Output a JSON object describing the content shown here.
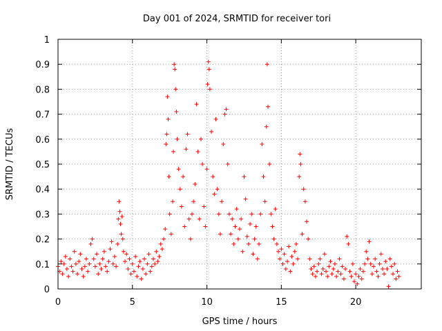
{
  "chart_data": {
    "type": "scatter",
    "title": "Day 001 of 2024, SRMTID for receiver tori",
    "xlabel": "GPS time / hours",
    "ylabel": "SRMTID / TECUs",
    "xlim": [
      0,
      24.4
    ],
    "ylim": [
      0,
      1
    ],
    "xticks": [
      0,
      5,
      10,
      15,
      20
    ],
    "xtick_labels": [
      "0",
      "5",
      "10",
      "15",
      "20"
    ],
    "yticks": [
      0,
      0.1,
      0.2,
      0.3,
      0.4,
      0.5,
      0.6,
      0.7,
      0.8,
      0.9,
      1
    ],
    "ytick_labels": [
      "0",
      "0.1",
      "0.2",
      "0.3",
      "0.4",
      "0.5",
      "0.6",
      "0.7",
      "0.8",
      "0.9",
      "1"
    ],
    "grid": true,
    "marker": "+",
    "color": "#ff0000",
    "series": [
      {
        "name": "SRMTID",
        "points": [
          [
            0.0,
            0.09
          ],
          [
            0.1,
            0.07
          ],
          [
            0.2,
            0.11
          ],
          [
            0.3,
            0.06
          ],
          [
            0.4,
            0.1
          ],
          [
            0.5,
            0.13
          ],
          [
            0.6,
            0.08
          ],
          [
            0.7,
            0.05
          ],
          [
            0.8,
            0.12
          ],
          [
            0.9,
            0.09
          ],
          [
            1.0,
            0.07
          ],
          [
            1.1,
            0.15
          ],
          [
            1.2,
            0.1
          ],
          [
            1.3,
            0.06
          ],
          [
            1.4,
            0.11
          ],
          [
            1.5,
            0.14
          ],
          [
            1.6,
            0.08
          ],
          [
            1.7,
            0.05
          ],
          [
            1.8,
            0.09
          ],
          [
            1.9,
            0.12
          ],
          [
            2.0,
            0.07
          ],
          [
            2.1,
            0.1
          ],
          [
            2.2,
            0.18
          ],
          [
            2.3,
            0.2
          ],
          [
            2.4,
            0.12
          ],
          [
            2.5,
            0.09
          ],
          [
            2.6,
            0.14
          ],
          [
            2.7,
            0.06
          ],
          [
            2.8,
            0.1
          ],
          [
            2.9,
            0.08
          ],
          [
            3.0,
            0.12
          ],
          [
            3.1,
            0.15
          ],
          [
            3.2,
            0.09
          ],
          [
            3.3,
            0.07
          ],
          [
            3.4,
            0.11
          ],
          [
            3.5,
            0.16
          ],
          [
            3.6,
            0.19
          ],
          [
            3.7,
            0.1
          ],
          [
            3.8,
            0.13
          ],
          [
            3.9,
            0.09
          ],
          [
            4.0,
            0.18
          ],
          [
            4.05,
            0.28
          ],
          [
            4.1,
            0.35
          ],
          [
            4.15,
            0.31
          ],
          [
            4.2,
            0.26
          ],
          [
            4.25,
            0.22
          ],
          [
            4.3,
            0.29
          ],
          [
            4.35,
            0.2
          ],
          [
            4.4,
            0.15
          ],
          [
            4.5,
            0.11
          ],
          [
            4.6,
            0.14
          ],
          [
            4.7,
            0.08
          ],
          [
            4.8,
            0.12
          ],
          [
            4.9,
            0.06
          ],
          [
            5.0,
            0.1
          ],
          [
            5.1,
            0.07
          ],
          [
            5.2,
            0.13
          ],
          [
            5.3,
            0.05
          ],
          [
            5.4,
            0.09
          ],
          [
            5.5,
            0.11
          ],
          [
            5.6,
            0.04
          ],
          [
            5.7,
            0.08
          ],
          [
            5.8,
            0.12
          ],
          [
            5.9,
            0.06
          ],
          [
            6.0,
            0.1
          ],
          [
            6.1,
            0.14
          ],
          [
            6.2,
            0.07
          ],
          [
            6.3,
            0.09
          ],
          [
            6.4,
            0.12
          ],
          [
            6.5,
            0.1
          ],
          [
            6.6,
            0.15
          ],
          [
            6.7,
            0.11
          ],
          [
            6.8,
            0.13
          ],
          [
            6.9,
            0.18
          ],
          [
            7.0,
            0.16
          ],
          [
            7.1,
            0.2
          ],
          [
            7.2,
            0.24
          ],
          [
            7.25,
            0.58
          ],
          [
            7.3,
            0.62
          ],
          [
            7.35,
            0.77
          ],
          [
            7.4,
            0.68
          ],
          [
            7.45,
            0.45
          ],
          [
            7.5,
            0.3
          ],
          [
            7.6,
            0.22
          ],
          [
            7.7,
            0.35
          ],
          [
            7.75,
            0.55
          ],
          [
            7.8,
            0.9
          ],
          [
            7.85,
            0.88
          ],
          [
            7.9,
            0.8
          ],
          [
            7.95,
            0.71
          ],
          [
            8.0,
            0.6
          ],
          [
            8.1,
            0.48
          ],
          [
            8.2,
            0.4
          ],
          [
            8.3,
            0.33
          ],
          [
            8.4,
            0.45
          ],
          [
            8.5,
            0.25
          ],
          [
            8.6,
            0.56
          ],
          [
            8.7,
            0.62
          ],
          [
            8.8,
            0.28
          ],
          [
            8.9,
            0.2
          ],
          [
            9.0,
            0.3
          ],
          [
            9.1,
            0.35
          ],
          [
            9.2,
            0.42
          ],
          [
            9.3,
            0.74
          ],
          [
            9.4,
            0.55
          ],
          [
            9.5,
            0.28
          ],
          [
            9.6,
            0.6
          ],
          [
            9.7,
            0.5
          ],
          [
            9.8,
            0.33
          ],
          [
            9.9,
            0.25
          ],
          [
            10.0,
            0.48
          ],
          [
            10.05,
            0.82
          ],
          [
            10.1,
            0.91
          ],
          [
            10.15,
            0.88
          ],
          [
            10.2,
            0.8
          ],
          [
            10.3,
            0.63
          ],
          [
            10.4,
            0.45
          ],
          [
            10.5,
            0.38
          ],
          [
            10.6,
            0.68
          ],
          [
            10.7,
            0.4
          ],
          [
            10.8,
            0.3
          ],
          [
            10.9,
            0.22
          ],
          [
            11.0,
            0.35
          ],
          [
            11.1,
            0.58
          ],
          [
            11.2,
            0.7
          ],
          [
            11.3,
            0.72
          ],
          [
            11.4,
            0.5
          ],
          [
            11.5,
            0.3
          ],
          [
            11.6,
            0.22
          ],
          [
            11.7,
            0.28
          ],
          [
            11.8,
            0.18
          ],
          [
            11.9,
            0.25
          ],
          [
            12.0,
            0.32
          ],
          [
            12.1,
            0.2
          ],
          [
            12.2,
            0.24
          ],
          [
            12.3,
            0.28
          ],
          [
            12.4,
            0.15
          ],
          [
            12.5,
            0.45
          ],
          [
            12.6,
            0.36
          ],
          [
            12.7,
            0.21
          ],
          [
            12.8,
            0.18
          ],
          [
            12.9,
            0.26
          ],
          [
            13.0,
            0.3
          ],
          [
            13.1,
            0.14
          ],
          [
            13.2,
            0.2
          ],
          [
            13.3,
            0.25
          ],
          [
            13.4,
            0.12
          ],
          [
            13.5,
            0.18
          ],
          [
            13.6,
            0.3
          ],
          [
            13.7,
            0.58
          ],
          [
            13.8,
            0.45
          ],
          [
            13.9,
            0.35
          ],
          [
            14.0,
            0.65
          ],
          [
            14.05,
            0.9
          ],
          [
            14.1,
            0.73
          ],
          [
            14.2,
            0.5
          ],
          [
            14.3,
            0.3
          ],
          [
            14.4,
            0.25
          ],
          [
            14.5,
            0.2
          ],
          [
            14.6,
            0.32
          ],
          [
            14.7,
            0.18
          ],
          [
            14.8,
            0.15
          ],
          [
            14.9,
            0.12
          ],
          [
            15.0,
            0.16
          ],
          [
            15.1,
            0.1
          ],
          [
            15.2,
            0.14
          ],
          [
            15.3,
            0.08
          ],
          [
            15.4,
            0.11
          ],
          [
            15.5,
            0.17
          ],
          [
            15.6,
            0.07
          ],
          [
            15.7,
            0.13
          ],
          [
            15.8,
            0.1
          ],
          [
            15.9,
            0.15
          ],
          [
            16.0,
            0.18
          ],
          [
            16.1,
            0.12
          ],
          [
            16.2,
            0.45
          ],
          [
            16.25,
            0.54
          ],
          [
            16.3,
            0.5
          ],
          [
            16.4,
            0.22
          ],
          [
            16.5,
            0.4
          ],
          [
            16.6,
            0.35
          ],
          [
            16.7,
            0.27
          ],
          [
            16.8,
            0.2
          ],
          [
            16.9,
            0.12
          ],
          [
            17.0,
            0.08
          ],
          [
            17.1,
            0.06
          ],
          [
            17.2,
            0.09
          ],
          [
            17.3,
            0.05
          ],
          [
            17.4,
            0.07
          ],
          [
            17.5,
            0.1
          ],
          [
            17.6,
            0.12
          ],
          [
            17.7,
            0.06
          ],
          [
            17.8,
            0.08
          ],
          [
            17.9,
            0.14
          ],
          [
            18.0,
            0.07
          ],
          [
            18.1,
            0.05
          ],
          [
            18.2,
            0.09
          ],
          [
            18.3,
            0.11
          ],
          [
            18.4,
            0.06
          ],
          [
            18.5,
            0.08
          ],
          [
            18.6,
            0.1
          ],
          [
            18.7,
            0.05
          ],
          [
            18.8,
            0.07
          ],
          [
            18.9,
            0.12
          ],
          [
            19.0,
            0.06
          ],
          [
            19.1,
            0.09
          ],
          [
            19.2,
            0.04
          ],
          [
            19.3,
            0.08
          ],
          [
            19.4,
            0.21
          ],
          [
            19.5,
            0.18
          ],
          [
            19.6,
            0.07
          ],
          [
            19.7,
            0.05
          ],
          [
            19.8,
            0.1
          ],
          [
            19.9,
            0.03
          ],
          [
            20.0,
            0.06
          ],
          [
            20.1,
            0.02
          ],
          [
            20.2,
            0.05
          ],
          [
            20.3,
            0.08
          ],
          [
            20.4,
            0.04
          ],
          [
            20.5,
            0.07
          ],
          [
            20.6,
            0.1
          ],
          [
            20.7,
            0.15
          ],
          [
            20.8,
            0.12
          ],
          [
            20.9,
            0.19
          ],
          [
            21.0,
            0.1
          ],
          [
            21.1,
            0.06
          ],
          [
            21.2,
            0.09
          ],
          [
            21.3,
            0.12
          ],
          [
            21.4,
            0.07
          ],
          [
            21.5,
            0.05
          ],
          [
            21.6,
            0.1
          ],
          [
            21.7,
            0.14
          ],
          [
            21.8,
            0.08
          ],
          [
            21.9,
            0.06
          ],
          [
            22.0,
            0.11
          ],
          [
            22.1,
            0.08
          ],
          [
            22.2,
            0.01
          ],
          [
            22.3,
            0.12
          ],
          [
            22.4,
            0.09
          ],
          [
            22.5,
            0.06
          ],
          [
            22.6,
            0.1
          ],
          [
            22.7,
            0.04
          ],
          [
            22.8,
            0.07
          ],
          [
            22.9,
            0.05
          ]
        ]
      }
    ]
  }
}
